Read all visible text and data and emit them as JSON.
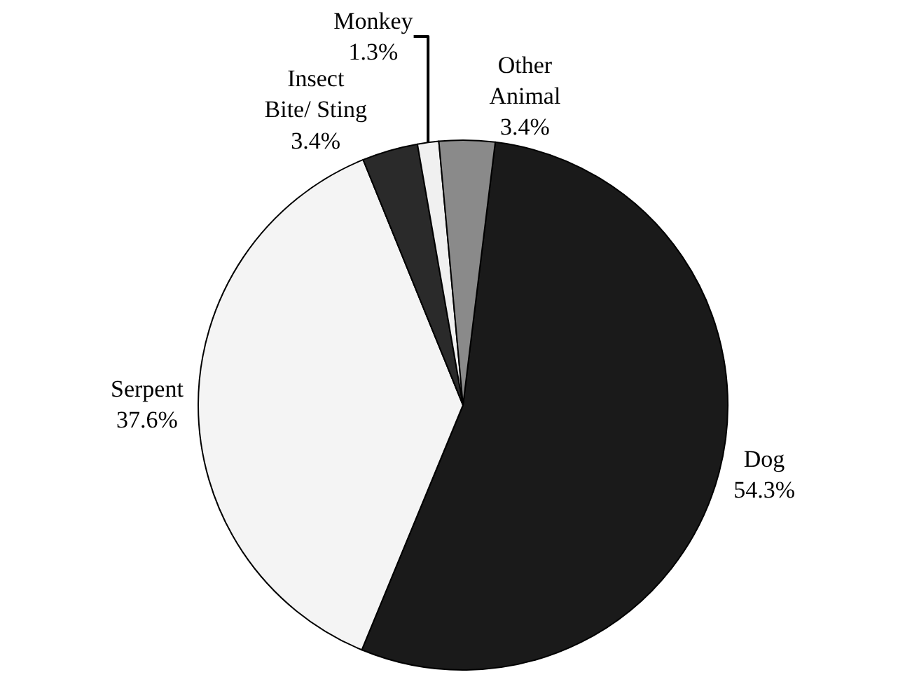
{
  "chart_data": {
    "type": "pie",
    "categories": [
      "Dog",
      "Serpent",
      "Insect Bite/ Sting",
      "Monkey",
      "Other Animal"
    ],
    "values": [
      54.3,
      37.6,
      3.4,
      1.3,
      3.4
    ],
    "value_labels": [
      "54.3%",
      "37.6%",
      "3.4%",
      "1.3%",
      "3.4%"
    ],
    "colors": [
      "#1a1a1a",
      "#f4f4f4",
      "#2a2a2a",
      "#f0f0f0",
      "#8a8a8a"
    ],
    "legend": false
  }
}
